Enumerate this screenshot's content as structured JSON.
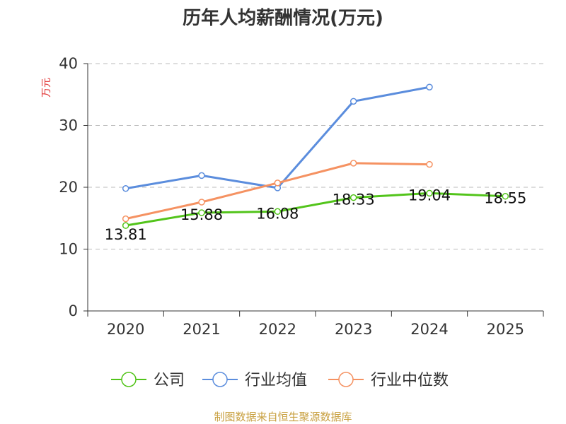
{
  "chart_data": {
    "type": "line",
    "title": "历年人均薪酬情况(万元)",
    "xlabel": "",
    "ylabel": "万元",
    "categories": [
      "2020",
      "2021",
      "2022",
      "2023",
      "2024",
      "2025"
    ],
    "ylim": [
      0,
      40
    ],
    "yticks": [
      0,
      10,
      20,
      30,
      40
    ],
    "grid": true,
    "legend_position": "bottom",
    "series": [
      {
        "name": "公司",
        "color": "#52c41a",
        "values": [
          13.81,
          15.88,
          16.08,
          18.33,
          19.04,
          18.55
        ],
        "labels": [
          "13.81",
          "15.88",
          "16.08",
          "18.33",
          "19.04",
          "18.55"
        ]
      },
      {
        "name": "行业均值",
        "color": "#5b8ddd",
        "values": [
          19.8,
          21.9,
          19.9,
          33.9,
          36.2,
          null
        ]
      },
      {
        "name": "行业中位数",
        "color": "#f59262",
        "values": [
          14.9,
          17.6,
          20.7,
          23.9,
          23.7,
          null
        ]
      }
    ]
  },
  "source": "制图数据来自恒生聚源数据库"
}
